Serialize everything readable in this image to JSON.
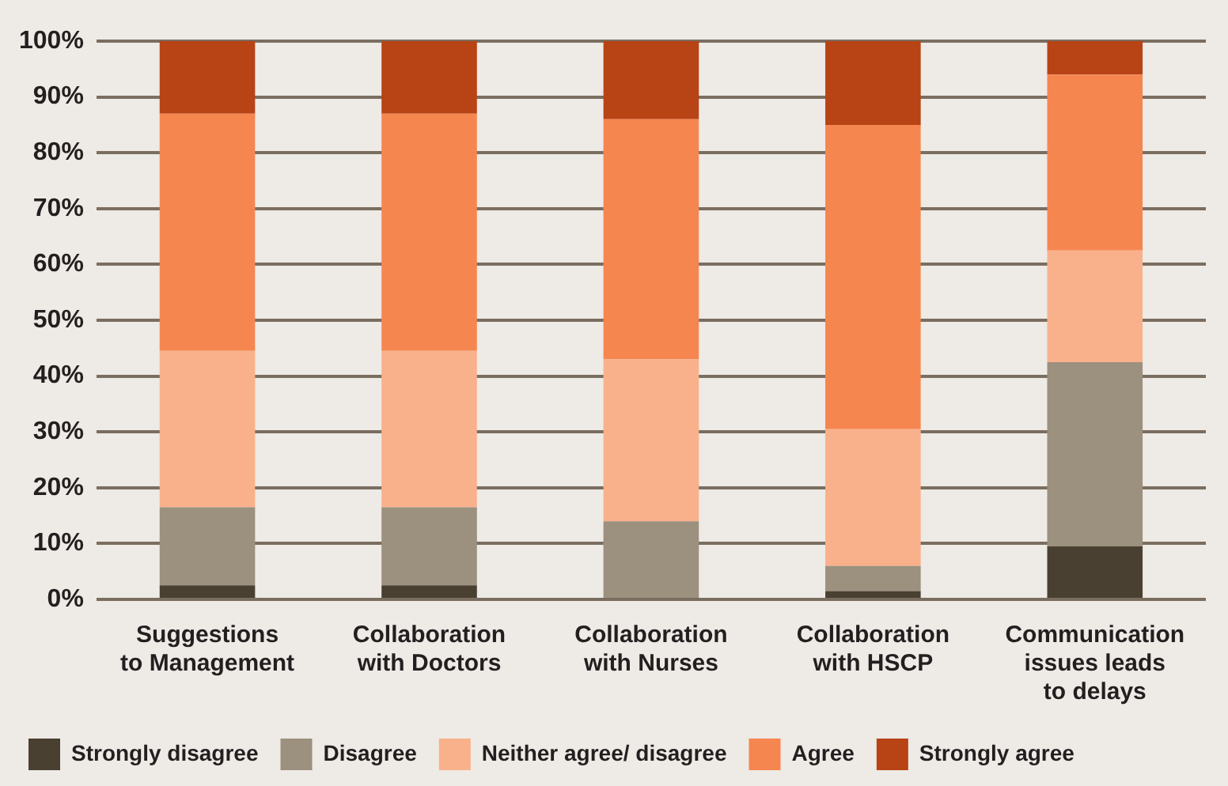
{
  "chart_data": {
    "type": "bar",
    "stacked": true,
    "categories": [
      "Suggestions to Management",
      "Collaboration with Doctors",
      "Collaboration with Nurses",
      "Collaboration with HSCP",
      "Communication issues leads to delays"
    ],
    "series": [
      {
        "name": "Strongly disagree",
        "color": "#4a4032",
        "values": [
          2.5,
          2.5,
          0,
          1.5,
          9.5
        ]
      },
      {
        "name": "Disagree",
        "color": "#9c907e",
        "values": [
          14,
          14,
          14,
          4.5,
          33
        ]
      },
      {
        "name": "Neither agree/ disagree",
        "color": "#f9b18b",
        "values": [
          28,
          28,
          29,
          24.5,
          20
        ]
      },
      {
        "name": "Agree",
        "color": "#f68650",
        "values": [
          42.5,
          42.5,
          43,
          54.5,
          31.5
        ]
      },
      {
        "name": "Strongly agree",
        "color": "#b84315",
        "values": [
          13,
          13,
          14,
          15,
          6
        ]
      }
    ],
    "ylim": [
      0,
      100
    ],
    "yticks": [
      {
        "value": 0,
        "label": "0%"
      },
      {
        "value": 10,
        "label": "10%"
      },
      {
        "value": 20,
        "label": "20%"
      },
      {
        "value": 30,
        "label": "30%"
      },
      {
        "value": 40,
        "label": "40%"
      },
      {
        "value": 50,
        "label": "50%"
      },
      {
        "value": 60,
        "label": "60%"
      },
      {
        "value": 70,
        "label": "70%"
      },
      {
        "value": 80,
        "label": "80%"
      },
      {
        "value": 90,
        "label": "90%"
      },
      {
        "value": 100,
        "label": "100%"
      }
    ],
    "grid": "y",
    "legend": "bottom"
  }
}
